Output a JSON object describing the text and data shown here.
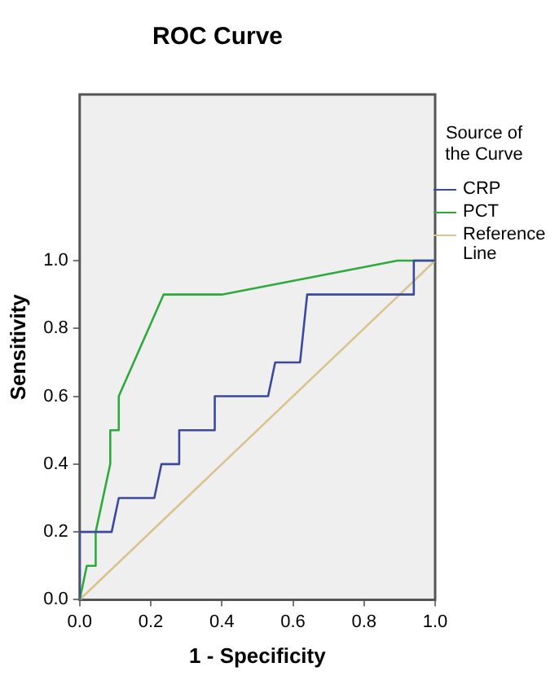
{
  "chart_data": {
    "type": "line",
    "title": "ROC Curve",
    "xlabel": "1 - Specificity",
    "ylabel": "Sensitivity",
    "legend_title": "Source of the Curve",
    "series": [
      {
        "name": "CRP",
        "color": "#3b4a9c",
        "x": [
          0,
          0,
          0.09,
          0.11,
          0.21,
          0.23,
          0.28,
          0.28,
          0.38,
          0.38,
          0.53,
          0.55,
          0.62,
          0.64,
          0.94,
          0.94,
          1
        ],
        "values": [
          0,
          0.2,
          0.2,
          0.3,
          0.3,
          0.4,
          0.4,
          0.5,
          0.5,
          0.6,
          0.6,
          0.7,
          0.7,
          0.9,
          0.9,
          1,
          1
        ]
      },
      {
        "name": "PCT",
        "color": "#2eaa3c",
        "x": [
          0,
          0.02,
          0.044,
          0.045,
          0.086,
          0.086,
          0.106,
          0.11,
          0.236,
          0.4,
          0.894,
          1
        ],
        "values": [
          0,
          0.1,
          0.1,
          0.2,
          0.4,
          0.5,
          0.5,
          0.6,
          0.9,
          0.9,
          1,
          1
        ]
      },
      {
        "name": "Reference Line",
        "color": "#d8c48e",
        "x": [
          0,
          1
        ],
        "values": [
          0,
          1
        ]
      }
    ],
    "xlim": [
      0,
      1
    ],
    "ylim": [
      0,
      1.49
    ],
    "xticks": [
      {
        "value": 0,
        "label": "0.0"
      },
      {
        "value": 0.2,
        "label": "0.2"
      },
      {
        "value": 0.4,
        "label": "0.4"
      },
      {
        "value": 0.6,
        "label": "0.6"
      },
      {
        "value": 0.8,
        "label": "0.8"
      },
      {
        "value": 1,
        "label": "1.0"
      }
    ],
    "yticks": [
      {
        "value": 0,
        "label": "0.0"
      },
      {
        "value": 0.2,
        "label": "0.2"
      },
      {
        "value": 0.4,
        "label": "0.4"
      },
      {
        "value": 0.6,
        "label": "0.6"
      },
      {
        "value": 0.8,
        "label": "0.8"
      },
      {
        "value": 1,
        "label": "1.0"
      }
    ],
    "grid": false,
    "legend": "right",
    "marker": "none",
    "line_style": "solid"
  }
}
